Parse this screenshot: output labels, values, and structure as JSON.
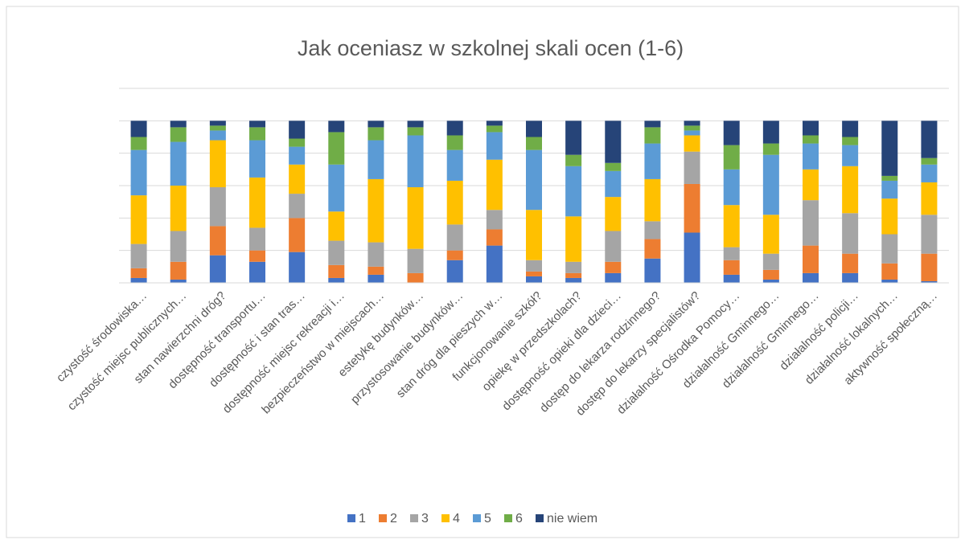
{
  "chart_data": {
    "type": "stacked_bar_percent",
    "title": "Jak oceniasz w szkolnej skali ocen (1-6)",
    "categories": [
      "czystość środowiska…",
      "czystość miejsc publicznych…",
      "stan nawierzchni dróg?",
      "dostępność transportu…",
      "dostępność i stan tras…",
      "dostępność miejsc rekreacji i…",
      "bezpieczeństwo w miejscach…",
      "estetykę budynków…",
      "przystosowanie budynków…",
      "stan dróg dla pieszych w…",
      "funkcjonowanie szkół?",
      "opiekę w przedszkolach?",
      "dostępność opieki dla dzieci…",
      "dostęp do lekarza rodzinnego?",
      "dostęp do lekarzy specjalistów?",
      "działalność Ośrodka Pomocy…",
      "działalność Gminnego…",
      "działalność Gminnego…",
      "działalność policji…",
      "działalność lokalnych…",
      "aktywność społeczną…"
    ],
    "series": [
      {
        "name": "1",
        "color": "#4472c4",
        "values": [
          3,
          2,
          17,
          13,
          19,
          3,
          5,
          0,
          14,
          23,
          4,
          3,
          6,
          15,
          31,
          5,
          2,
          6,
          6,
          2,
          1
        ]
      },
      {
        "name": "2",
        "color": "#ed7d31",
        "values": [
          6,
          11,
          18,
          7,
          21,
          8,
          5,
          6,
          6,
          10,
          3,
          3,
          7,
          12,
          30,
          9,
          6,
          17,
          12,
          10,
          17
        ]
      },
      {
        "name": "3",
        "color": "#a5a5a5",
        "values": [
          15,
          19,
          24,
          14,
          15,
          15,
          15,
          15,
          16,
          12,
          7,
          7,
          19,
          11,
          20,
          8,
          10,
          28,
          25,
          18,
          24
        ]
      },
      {
        "name": "4",
        "color": "#ffc000",
        "values": [
          30,
          28,
          29,
          31,
          18,
          18,
          39,
          38,
          27,
          31,
          31,
          28,
          21,
          26,
          10,
          26,
          24,
          19,
          29,
          22,
          20
        ]
      },
      {
        "name": "5",
        "color": "#5b9bd5",
        "values": [
          28,
          27,
          6,
          23,
          11,
          29,
          24,
          32,
          19,
          17,
          37,
          31,
          16,
          22,
          3,
          22,
          37,
          16,
          13,
          11,
          11
        ]
      },
      {
        "name": "6",
        "color": "#70ad47",
        "values": [
          8,
          9,
          3,
          8,
          5,
          20,
          8,
          5,
          9,
          4,
          8,
          7,
          5,
          10,
          3,
          15,
          7,
          5,
          5,
          3,
          4
        ]
      },
      {
        "name": "nie wiem",
        "color": "#264478",
        "values": [
          10,
          4,
          3,
          4,
          11,
          7,
          4,
          4,
          9,
          3,
          10,
          21,
          26,
          4,
          3,
          15,
          14,
          9,
          10,
          34,
          23
        ]
      }
    ],
    "ylim": [
      0,
      120
    ],
    "yticks": [
      0,
      20,
      40,
      60,
      80,
      100,
      120
    ],
    "grid": true,
    "legend": "bottom"
  }
}
